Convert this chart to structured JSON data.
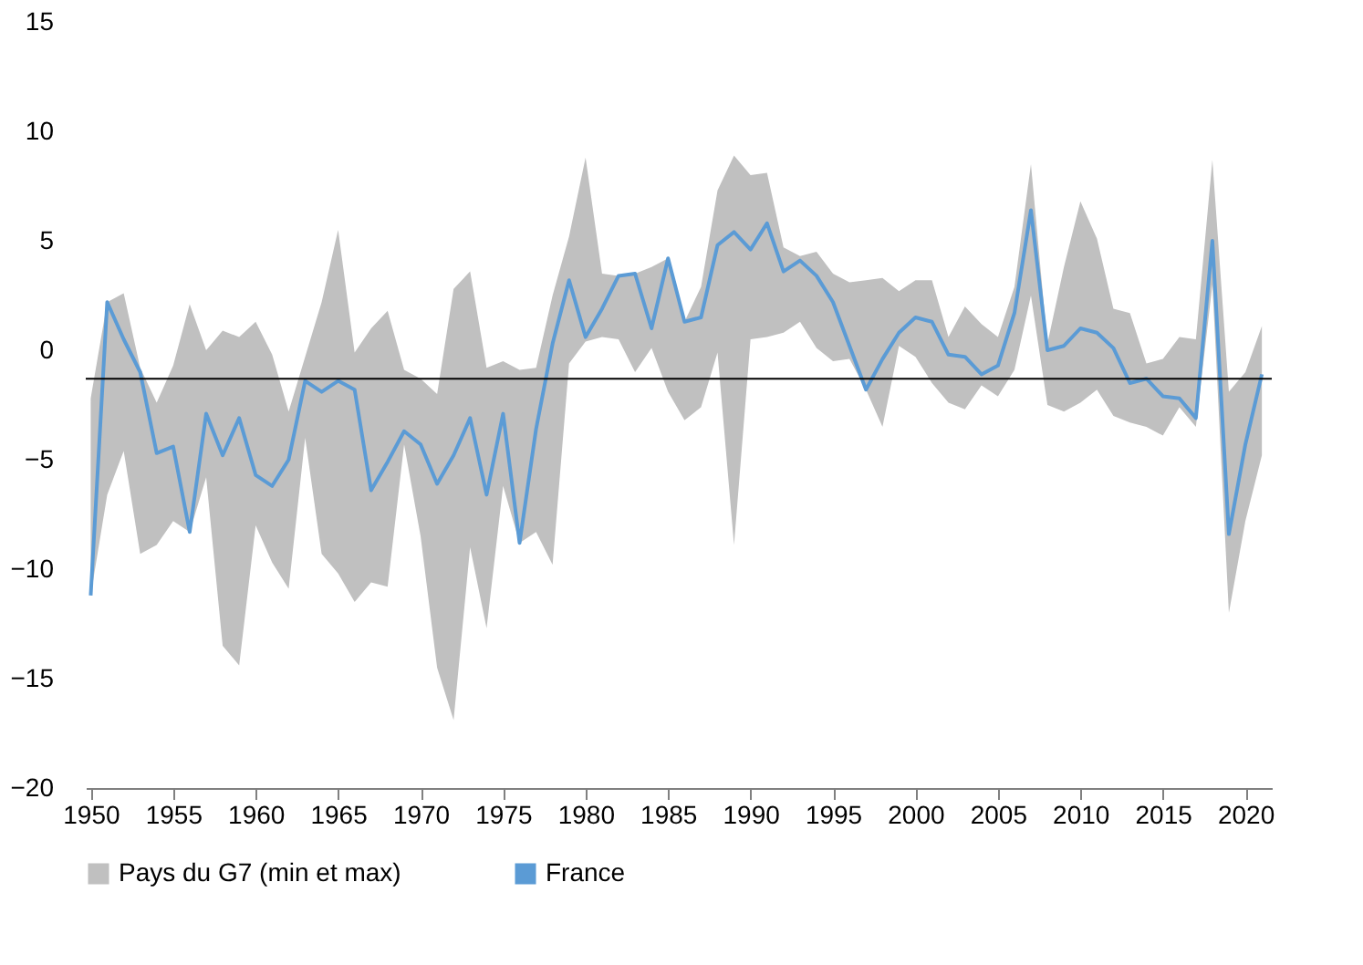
{
  "chart_data": {
    "type": "line",
    "x": [
      1950,
      1951,
      1952,
      1953,
      1954,
      1955,
      1956,
      1957,
      1958,
      1959,
      1960,
      1961,
      1962,
      1963,
      1964,
      1965,
      1966,
      1967,
      1968,
      1969,
      1970,
      1971,
      1972,
      1973,
      1974,
      1975,
      1976,
      1977,
      1978,
      1979,
      1980,
      1981,
      1982,
      1983,
      1984,
      1985,
      1986,
      1987,
      1988,
      1989,
      1990,
      1991,
      1992,
      1993,
      1994,
      1995,
      1996,
      1997,
      1998,
      1999,
      2000,
      2001,
      2002,
      2003,
      2004,
      2005,
      2006,
      2007,
      2008,
      2009,
      2010,
      2011,
      2012,
      2013,
      2014,
      2015,
      2016,
      2017,
      2018,
      2019,
      2020,
      2021
    ],
    "series": [
      {
        "name": "France",
        "color": "#5b9bd5",
        "values": [
          -11.2,
          2.2,
          0.5,
          -1.0,
          -4.7,
          -4.4,
          -8.3,
          -2.9,
          -4.8,
          -3.1,
          -5.7,
          -6.2,
          -5.0,
          -1.4,
          -1.9,
          -1.4,
          -1.8,
          -6.4,
          -5.1,
          -3.7,
          -4.3,
          -6.1,
          -4.8,
          -3.1,
          -6.6,
          -2.9,
          -8.8,
          -3.6,
          0.3,
          3.2,
          0.6,
          1.9,
          3.4,
          3.5,
          1.0,
          4.2,
          1.3,
          1.5,
          4.8,
          5.4,
          4.6,
          5.8,
          3.6,
          4.1,
          3.4,
          2.2,
          0.2,
          -1.8,
          -0.4,
          0.8,
          1.5,
          1.3,
          -0.2,
          -0.3,
          -1.1,
          -0.7,
          1.7,
          6.4,
          0.0,
          0.2,
          1.0,
          0.8,
          0.1,
          -1.5,
          -1.3,
          -2.1,
          -2.2,
          -3.1,
          5.0,
          -8.4,
          -4.3,
          -1.1
        ],
        "upper": [
          -2.2,
          2.2,
          2.6,
          -0.8,
          -2.4,
          -0.7,
          2.1,
          0.0,
          0.9,
          0.6,
          1.3,
          -0.2,
          -2.8,
          -0.3,
          2.2,
          5.5,
          -0.1,
          1.0,
          1.8,
          -0.9,
          -1.3,
          -2.0,
          2.8,
          3.6,
          -0.8,
          -0.5,
          -0.9,
          -0.8,
          2.5,
          5.2,
          8.8,
          3.5,
          3.4,
          3.5,
          3.8,
          4.2,
          1.3,
          2.9,
          7.3,
          8.9,
          8.0,
          8.1,
          4.7,
          4.3,
          4.5,
          3.5,
          3.1,
          3.2,
          3.3,
          2.7,
          3.2,
          3.2,
          0.6,
          2.0,
          1.2,
          0.6,
          2.9,
          8.5,
          0.3,
          3.8,
          6.8,
          5.1,
          1.9,
          1.7,
          -0.6,
          -0.4,
          0.6,
          0.5,
          8.7,
          -1.9,
          -1.0,
          1.1
        ],
        "lower": [
          -11.2,
          -6.6,
          -4.6,
          -9.3,
          -8.9,
          -7.8,
          -8.3,
          -5.8,
          -13.5,
          -14.4,
          -8.0,
          -9.7,
          -10.9,
          -4.0,
          -9.3,
          -10.2,
          -11.5,
          -10.6,
          -10.8,
          -4.3,
          -8.5,
          -14.5,
          -16.9,
          -9.0,
          -12.7,
          -6.2,
          -8.8,
          -8.3,
          -9.8,
          -0.6,
          0.4,
          0.6,
          0.5,
          -1.0,
          0.1,
          -1.9,
          -3.2,
          -2.6,
          -0.1,
          -8.9,
          0.5,
          0.6,
          0.8,
          1.3,
          0.1,
          -0.5,
          -0.4,
          -1.8,
          -3.5,
          0.2,
          -0.3,
          -1.5,
          -2.4,
          -2.7,
          -1.6,
          -2.1,
          -0.9,
          2.5,
          -2.5,
          -2.8,
          -2.4,
          -1.8,
          -3.0,
          -3.3,
          -3.5,
          -3.9,
          -2.6,
          -3.5,
          3.0,
          -12.0,
          -7.8,
          -4.8
        ]
      }
    ],
    "annotations": [
      "Pays du G7 (min et max)"
    ],
    "xlim": [
      1949.7,
      2021.6
    ],
    "xticks": [
      1950,
      1955,
      1960,
      1965,
      1970,
      1975,
      1980,
      1985,
      1990,
      1995,
      2000,
      2005,
      2010,
      2015,
      2020
    ],
    "ylim": [
      -20,
      15
    ],
    "yticks": [
      -20,
      -15,
      -10,
      -5,
      0,
      5,
      10,
      15
    ],
    "ref_lines": [
      {
        "axis": "y",
        "value": -1.3,
        "color": "#000000"
      }
    ],
    "grid": false,
    "legend": "bottom",
    "marker": "none",
    "line_style": "solid"
  }
}
